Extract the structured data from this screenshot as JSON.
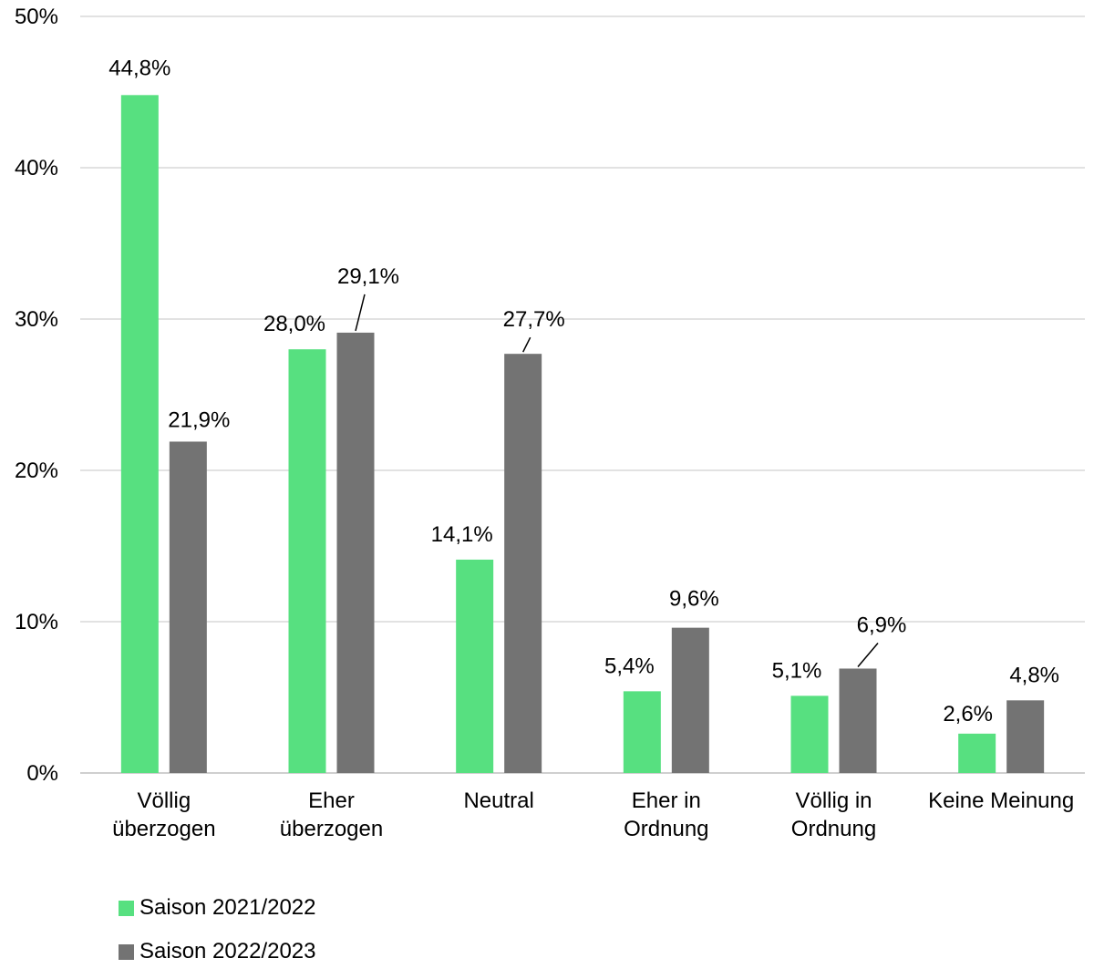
{
  "chart_data": {
    "type": "bar",
    "categories": [
      [
        "Völlig",
        "überzogen"
      ],
      [
        "Eher",
        "überzogen"
      ],
      [
        "Neutral"
      ],
      [
        "Eher in",
        "Ordnung"
      ],
      [
        "Völlig in",
        "Ordnung"
      ],
      [
        "Keine Meinung"
      ]
    ],
    "series": [
      {
        "name": "Saison 2021/2022",
        "color": "#57e080",
        "values": [
          44.8,
          28.0,
          14.1,
          5.4,
          5.1,
          2.6
        ],
        "labels": [
          "44,8%",
          "28,0%",
          "14,1%",
          "5,4%",
          "5,1%",
          "2,6%"
        ]
      },
      {
        "name": "Saison 2022/2023",
        "color": "#737373",
        "values": [
          21.9,
          29.1,
          27.7,
          9.6,
          6.9,
          4.8
        ],
        "labels": [
          "21,9%",
          "29,1%",
          "27,7%",
          "9,6%",
          "6,9%",
          "4,8%"
        ]
      }
    ],
    "yticks": [
      0,
      10,
      20,
      30,
      40,
      50
    ],
    "ytick_labels": [
      "0%",
      "10%",
      "20%",
      "30%",
      "40%",
      "50%"
    ],
    "ylim": [
      0,
      50
    ],
    "grid": true,
    "legend_position": "bottom-left",
    "gridline_color": "#d9d9d9"
  }
}
